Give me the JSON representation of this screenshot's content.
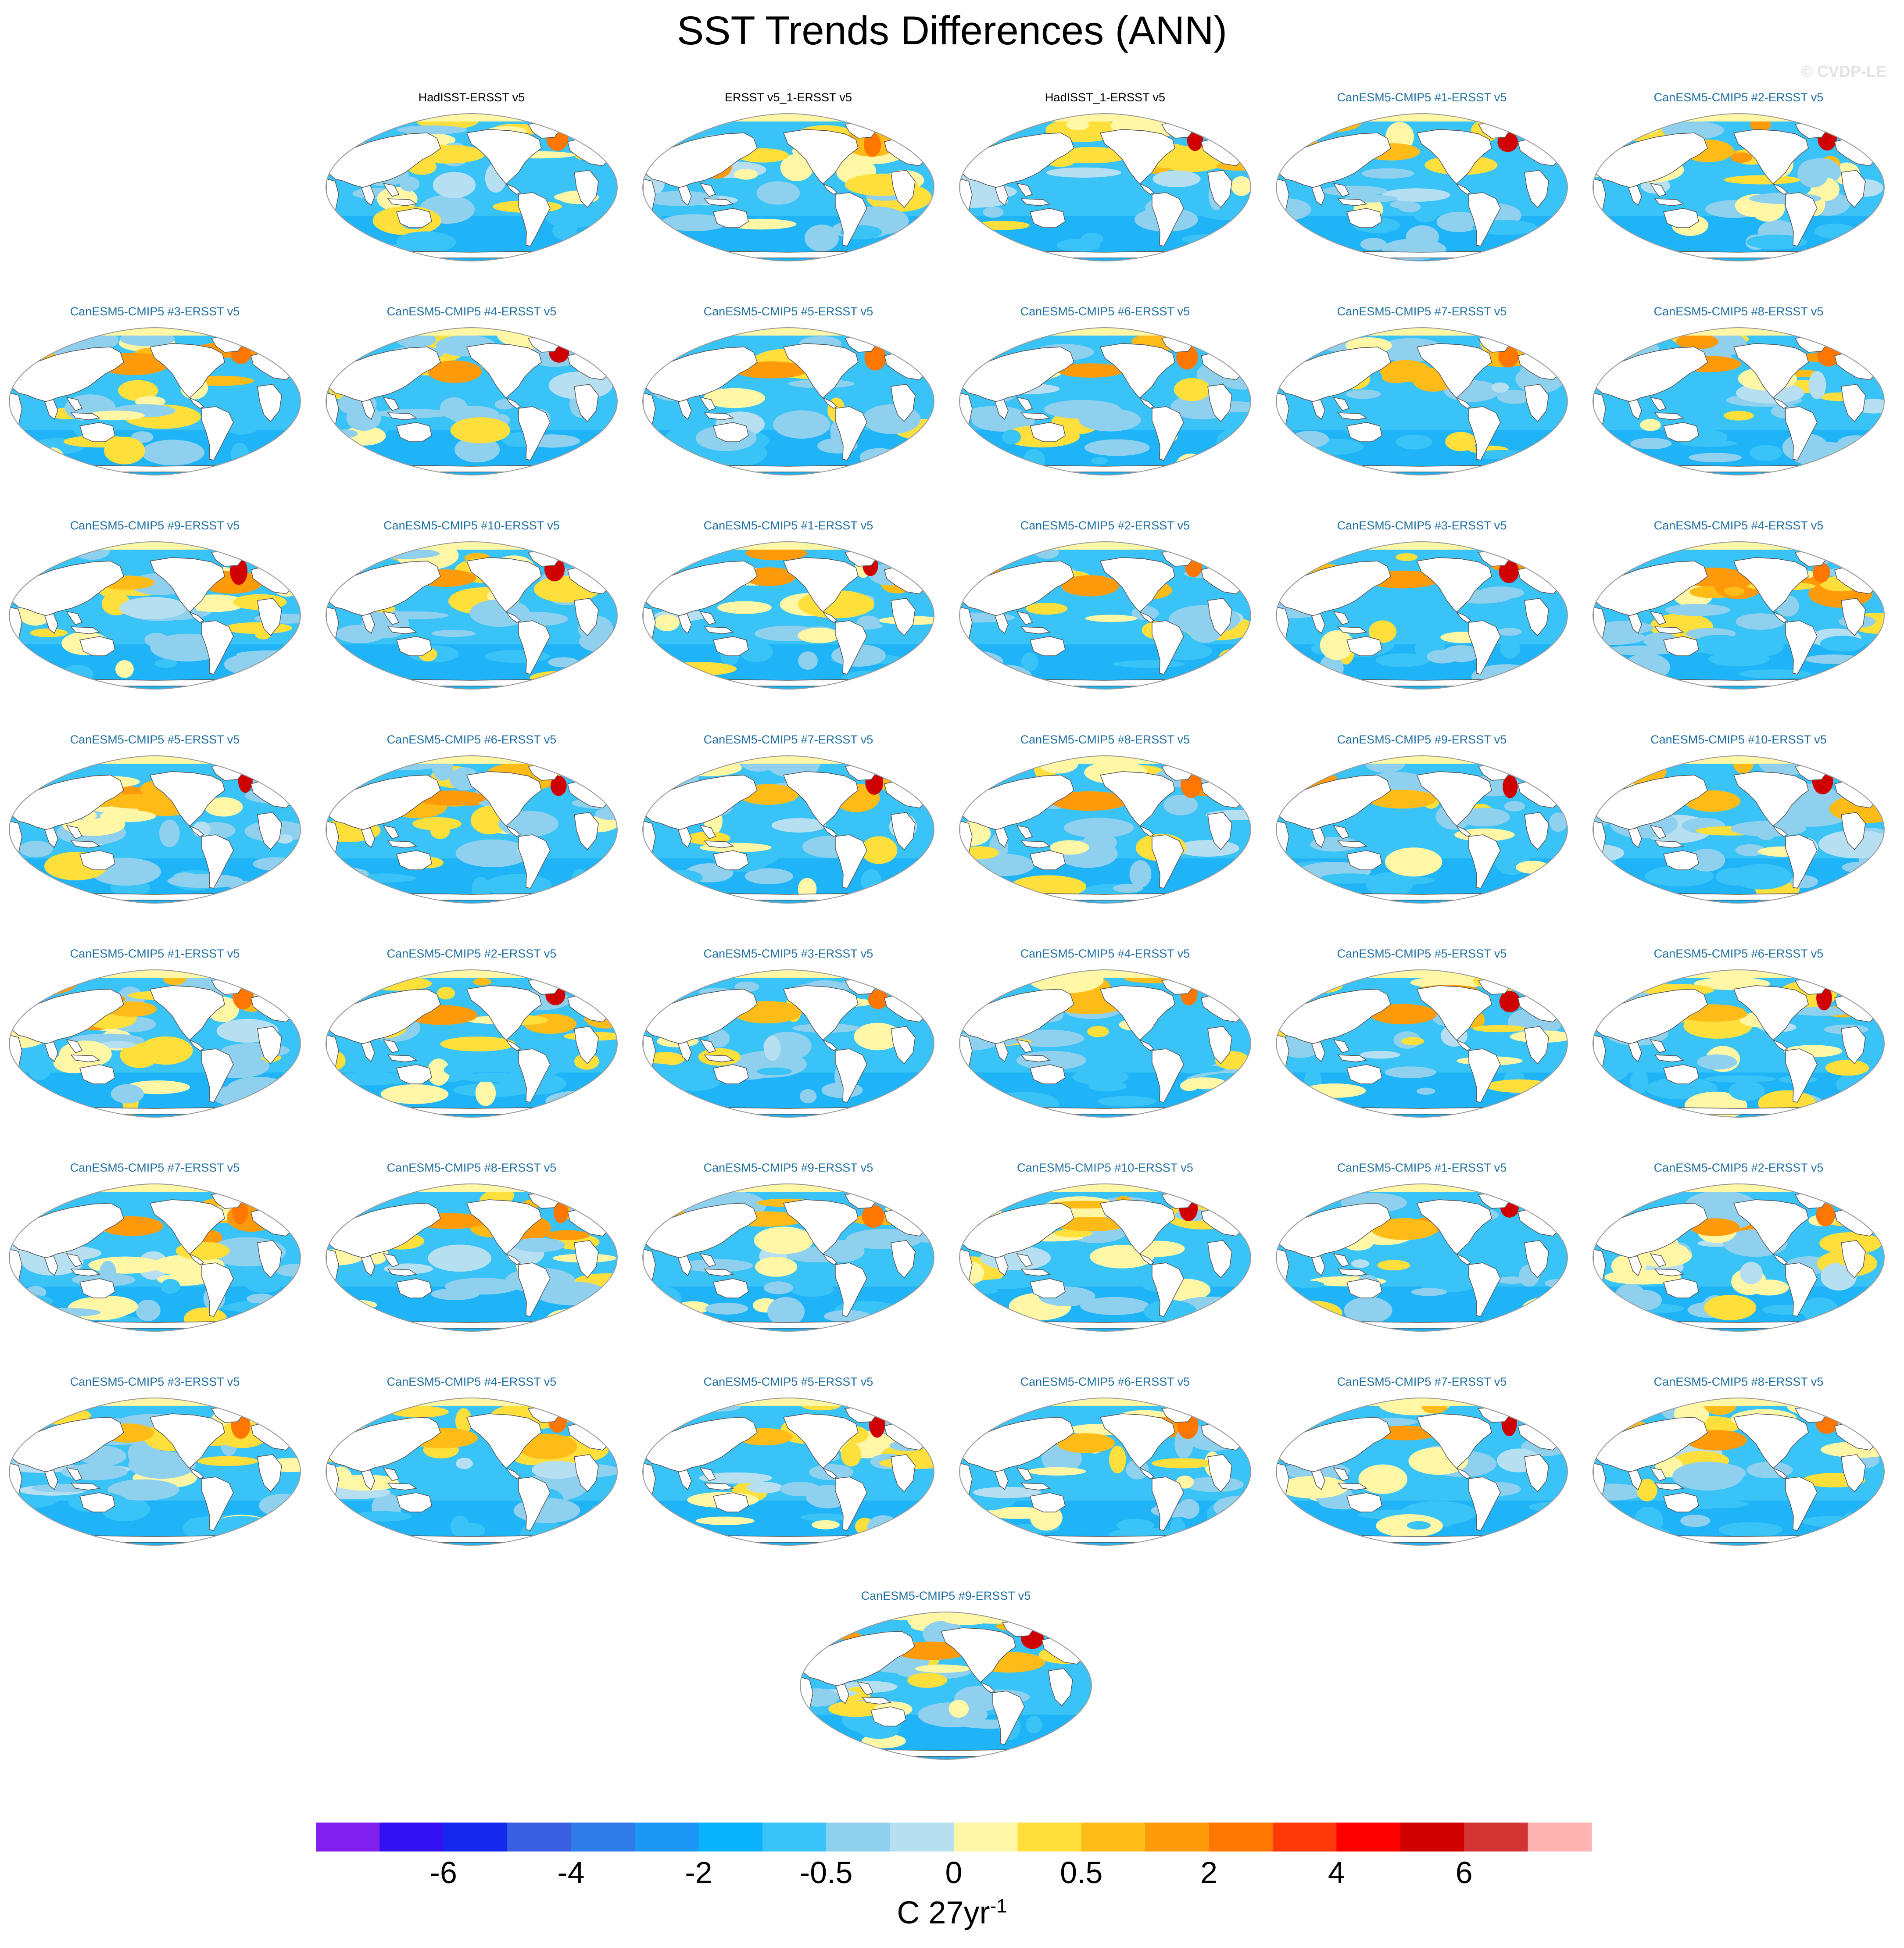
{
  "title": "SST Trends Differences (ANN)",
  "watermark": "© CVDP-LE",
  "chart_data": {
    "type": "heatmap",
    "title": "SST Trends Differences (ANN)",
    "projection": "robinson",
    "panel_titles": [
      "HadISST-ERSST v5",
      "ERSST v5_1-ERSST v5",
      "HadISST_1-ERSST v5",
      "CanESM5-CMIP5 #1-ERSST v5",
      "CanESM5-CMIP5 #2-ERSST v5",
      "CanESM5-CMIP5 #3-ERSST v5",
      "CanESM5-CMIP5 #4-ERSST v5",
      "CanESM5-CMIP5 #5-ERSST v5",
      "CanESM5-CMIP5 #6-ERSST v5",
      "CanESM5-CMIP5 #7-ERSST v5",
      "CanESM5-CMIP5 #8-ERSST v5",
      "CanESM5-CMIP5 #9-ERSST v5",
      "CanESM5-CMIP5 #10-ERSST v5",
      "CanESM5-CMIP5 #1-ERSST v5",
      "CanESM5-CMIP5 #2-ERSST v5",
      "CanESM5-CMIP5 #3-ERSST v5",
      "CanESM5-CMIP5 #4-ERSST v5",
      "CanESM5-CMIP5 #5-ERSST v5",
      "CanESM5-CMIP5 #6-ERSST v5",
      "CanESM5-CMIP5 #7-ERSST v5",
      "CanESM5-CMIP5 #8-ERSST v5",
      "CanESM5-CMIP5 #9-ERSST v5",
      "CanESM5-CMIP5 #10-ERSST v5",
      "CanESM5-CMIP5 #1-ERSST v5",
      "CanESM5-CMIP5 #2-ERSST v5",
      "CanESM5-CMIP5 #3-ERSST v5",
      "CanESM5-CMIP5 #4-ERSST v5",
      "CanESM5-CMIP5 #5-ERSST v5",
      "CanESM5-CMIP5 #6-ERSST v5",
      "CanESM5-CMIP5 #7-ERSST v5",
      "CanESM5-CMIP5 #8-ERSST v5",
      "CanESM5-CMIP5 #9-ERSST v5",
      "CanESM5-CMIP5 #10-ERSST v5",
      "CanESM5-CMIP5 #1-ERSST v5",
      "CanESM5-CMIP5 #2-ERSST v5",
      "CanESM5-CMIP5 #3-ERSST v5",
      "CanESM5-CMIP5 #4-ERSST v5",
      "CanESM5-CMIP5 #5-ERSST v5",
      "CanESM5-CMIP5 #6-ERSST v5",
      "CanESM5-CMIP5 #7-ERSST v5",
      "CanESM5-CMIP5 #8-ERSST v5",
      "CanESM5-CMIP5 #9-ERSST v5"
    ],
    "observational_panels": 3,
    "colorbar": {
      "colors": [
        "#7f20ef",
        "#3212f3",
        "#1428ee",
        "#3a5ee0",
        "#2e7bea",
        "#1c97f5",
        "#08b3fb",
        "#3ac3f6",
        "#8fd0ee",
        "#b6dff2",
        "#fff7a6",
        "#ffdf3c",
        "#ffbb18",
        "#ff9a0b",
        "#ff7700",
        "#ff3a06",
        "#ff0000",
        "#d10000",
        "#d33535",
        "#ffb3b3"
      ],
      "tick_labels": [
        "-6",
        "-4",
        "-2",
        "-0.5",
        "0",
        "0.5",
        "2",
        "4",
        "6"
      ],
      "units": "C 27yr",
      "units_exponent": "-1"
    }
  }
}
